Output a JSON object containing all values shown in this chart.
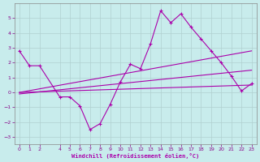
{
  "xlabel": "Windchill (Refroidissement éolien,°C)",
  "bg_color": "#c8ecec",
  "grid_color": "#b0d0d0",
  "line_color": "#aa00aa",
  "xlim": [
    -0.5,
    23.5
  ],
  "ylim": [
    -3.5,
    6.0
  ],
  "yticks": [
    -3,
    -2,
    -1,
    0,
    1,
    2,
    3,
    4,
    5
  ],
  "xticks": [
    0,
    1,
    2,
    4,
    5,
    6,
    7,
    8,
    9,
    10,
    11,
    12,
    13,
    14,
    15,
    16,
    17,
    18,
    19,
    20,
    21,
    22,
    23
  ],
  "series1_x": [
    0,
    1,
    2,
    4,
    5,
    6,
    7,
    8,
    9,
    10,
    11,
    12,
    13,
    14,
    15,
    16,
    17,
    18,
    19,
    20,
    21,
    22,
    23
  ],
  "series1_y": [
    2.8,
    1.8,
    1.8,
    -0.3,
    -0.3,
    -0.9,
    -2.5,
    -2.1,
    -0.8,
    0.7,
    1.9,
    1.6,
    3.3,
    5.5,
    4.7,
    5.3,
    4.4,
    3.6,
    2.8,
    2.0,
    1.1,
    0.1,
    0.6
  ],
  "trend1_x": [
    0,
    23
  ],
  "trend1_y": [
    0.0,
    2.8
  ],
  "trend2_x": [
    0,
    23
  ],
  "trend2_y": [
    -0.1,
    1.5
  ],
  "trend3_x": [
    0,
    23
  ],
  "trend3_y": [
    0.0,
    0.5
  ]
}
